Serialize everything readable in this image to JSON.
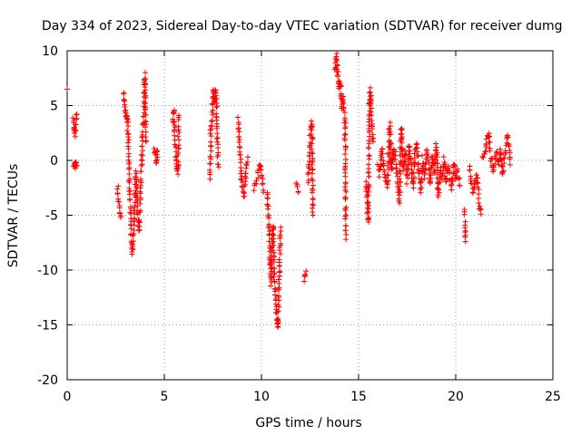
{
  "chart_data": {
    "type": "scatter",
    "title": "Day 334 of 2023, Sidereal Day-to-day VTEC variation (SDTVAR) for receiver dumg",
    "xlabel": "GPS time / hours",
    "ylabel": "SDTVAR / TECUs",
    "xlim": [
      0,
      25
    ],
    "ylim": [
      -20,
      10
    ],
    "xticks": [
      0,
      5,
      10,
      15,
      20,
      25
    ],
    "yticks": [
      10,
      5,
      0,
      -5,
      -10,
      -15,
      -20
    ],
    "grid": true,
    "marker": "+",
    "color": "#ff0000",
    "segments": [
      [
        [
          0.0,
          6.5
        ]
      ],
      [
        [
          0.3,
          3.8
        ],
        [
          0.35,
          2.9
        ],
        [
          0.4,
          2.3
        ],
        [
          0.45,
          3.4
        ],
        [
          0.5,
          4.2
        ]
      ],
      [
        [
          0.35,
          -0.4
        ],
        [
          0.4,
          -0.7
        ],
        [
          0.45,
          -0.2
        ],
        [
          0.5,
          -0.5
        ]
      ],
      [
        [
          2.6,
          -2.3
        ],
        [
          2.65,
          -3.7
        ],
        [
          2.7,
          -4.6
        ],
        [
          2.75,
          -5.2
        ]
      ],
      [
        [
          2.9,
          6.2
        ],
        [
          2.95,
          5.0
        ],
        [
          3.0,
          4.3
        ],
        [
          3.05,
          4.1
        ],
        [
          3.1,
          3.6
        ],
        [
          3.15,
          1.8
        ],
        [
          3.2,
          -1.5
        ],
        [
          3.25,
          -4.6
        ],
        [
          3.3,
          -6.9
        ],
        [
          3.35,
          -8.6
        ],
        [
          3.4,
          -6.8
        ],
        [
          3.45,
          -4.9
        ],
        [
          3.5,
          -2.6
        ],
        [
          3.55,
          -1.1
        ],
        [
          3.6,
          -3.4
        ],
        [
          3.65,
          -5.6
        ],
        [
          3.7,
          -6.6
        ],
        [
          3.75,
          -4.1
        ],
        [
          3.8,
          -1.8
        ],
        [
          3.85,
          0.4
        ],
        [
          3.9,
          2.8
        ],
        [
          3.95,
          4.5
        ],
        [
          4.0,
          7.8
        ],
        [
          4.05,
          1.7
        ]
      ],
      [
        [
          4.5,
          1.2
        ],
        [
          4.55,
          0.5
        ],
        [
          4.6,
          -0.3
        ],
        [
          4.65,
          0.9
        ]
      ],
      [
        [
          5.45,
          3.5
        ],
        [
          5.5,
          4.6
        ],
        [
          5.55,
          2.2
        ],
        [
          5.6,
          0.3
        ],
        [
          5.65,
          -0.6
        ],
        [
          5.7,
          -1.1
        ],
        [
          5.75,
          4.1
        ]
      ],
      [
        [
          7.35,
          -1.6
        ],
        [
          7.4,
          2.8
        ],
        [
          7.45,
          3.5
        ],
        [
          7.5,
          6.0
        ],
        [
          7.55,
          6.4
        ],
        [
          7.6,
          5.2
        ],
        [
          7.65,
          6.5
        ],
        [
          7.7,
          4.4
        ],
        [
          7.75,
          0.4
        ],
        [
          7.8,
          -0.6
        ]
      ],
      [
        [
          8.8,
          3.9
        ],
        [
          8.85,
          2.4
        ],
        [
          8.9,
          0.6
        ],
        [
          8.95,
          -1.0
        ],
        [
          9.0,
          -2.3
        ],
        [
          9.1,
          -3.3
        ],
        [
          9.2,
          -1.2
        ],
        [
          9.3,
          0.3
        ]
      ],
      [
        [
          9.6,
          -2.7
        ],
        [
          9.8,
          -1.4
        ],
        [
          9.9,
          -0.4
        ],
        [
          10.0,
          -0.9
        ],
        [
          10.1,
          -2.9
        ]
      ],
      [
        [
          10.3,
          -2.8
        ],
        [
          10.35,
          -4.9
        ],
        [
          10.4,
          -6.5
        ],
        [
          10.45,
          -9.4
        ],
        [
          10.5,
          -11.2
        ],
        [
          10.55,
          -7.1
        ],
        [
          10.6,
          -5.8
        ],
        [
          10.65,
          -10.2
        ],
        [
          10.7,
          -11.7
        ],
        [
          10.75,
          -13.4
        ],
        [
          10.8,
          -14.6
        ],
        [
          10.85,
          -15.3
        ],
        [
          10.9,
          -11.2
        ],
        [
          10.95,
          -8.3
        ],
        [
          11.0,
          -6.1
        ]
      ],
      [
        [
          11.8,
          -2.3
        ],
        [
          11.9,
          -2.9
        ]
      ],
      [
        [
          12.2,
          -11.0
        ],
        [
          12.3,
          -10.1
        ]
      ],
      [
        [
          12.4,
          -2.0
        ],
        [
          12.45,
          -0.6
        ],
        [
          12.5,
          1.8
        ],
        [
          12.55,
          2.9
        ],
        [
          12.6,
          3.5
        ],
        [
          12.65,
          -5.0
        ]
      ],
      [
        [
          13.8,
          8.1
        ],
        [
          13.85,
          9.6
        ],
        [
          13.9,
          8.3
        ],
        [
          13.95,
          7.5
        ],
        [
          14.0,
          6.6
        ],
        [
          14.05,
          7.3
        ],
        [
          14.1,
          5.8
        ],
        [
          14.15,
          4.9
        ],
        [
          14.2,
          6.1
        ],
        [
          14.25,
          4.4
        ],
        [
          14.3,
          3.6
        ],
        [
          14.35,
          -7.2
        ]
      ],
      [
        [
          15.4,
          -2.1
        ],
        [
          15.45,
          -4.4
        ],
        [
          15.5,
          -5.7
        ],
        [
          15.55,
          4.6
        ],
        [
          15.6,
          6.5
        ],
        [
          15.65,
          5.2
        ],
        [
          15.7,
          2.9
        ],
        [
          15.75,
          1.7
        ]
      ],
      [
        [
          16.0,
          -0.2
        ],
        [
          16.1,
          -1.3
        ],
        [
          16.2,
          1.2
        ],
        [
          16.3,
          -0.6
        ],
        [
          16.4,
          -1.8
        ],
        [
          16.5,
          -2.3
        ],
        [
          16.6,
          3.3
        ],
        [
          16.7,
          -1.0
        ],
        [
          16.8,
          1.1
        ],
        [
          16.9,
          0.4
        ],
        [
          17.0,
          -2.1
        ],
        [
          17.1,
          -3.9
        ],
        [
          17.2,
          3.0
        ],
        [
          17.3,
          -0.7
        ],
        [
          17.4,
          0.9
        ],
        [
          17.5,
          -1.9
        ],
        [
          17.6,
          1.4
        ],
        [
          17.7,
          -0.3
        ],
        [
          17.8,
          -2.4
        ],
        [
          17.9,
          0.6
        ],
        [
          18.0,
          1.6
        ],
        [
          18.1,
          -0.9
        ],
        [
          18.2,
          -2.8
        ],
        [
          18.3,
          0.2
        ],
        [
          18.4,
          -1.5
        ],
        [
          18.5,
          1.0
        ],
        [
          18.6,
          -0.4
        ],
        [
          18.7,
          -2.2
        ],
        [
          18.8,
          0.5
        ],
        [
          18.9,
          -1.1
        ],
        [
          19.0,
          1.3
        ],
        [
          19.1,
          -3.2
        ],
        [
          19.2,
          -0.8
        ],
        [
          19.3,
          -1.6
        ],
        [
          19.4,
          0.1
        ],
        [
          19.5,
          -2.0
        ],
        [
          19.6,
          -0.5
        ],
        [
          19.7,
          -1.3
        ],
        [
          19.8,
          -2.6
        ],
        [
          19.9,
          -0.2
        ],
        [
          20.0,
          -1.8
        ],
        [
          20.1,
          -0.9
        ],
        [
          20.2,
          -2.3
        ]
      ],
      [
        [
          20.45,
          -4.6
        ],
        [
          20.5,
          -7.4
        ]
      ],
      [
        [
          20.7,
          -0.6
        ],
        [
          20.8,
          -1.8
        ],
        [
          20.9,
          -3.0
        ],
        [
          21.0,
          -2.1
        ],
        [
          21.1,
          -1.2
        ],
        [
          21.2,
          -4.0
        ],
        [
          21.3,
          -4.9
        ]
      ],
      [
        [
          21.4,
          0.2
        ],
        [
          21.5,
          0.6
        ],
        [
          21.6,
          1.9
        ],
        [
          21.7,
          2.5
        ],
        [
          21.8,
          0.4
        ],
        [
          21.9,
          -0.9
        ],
        [
          22.0,
          -0.3
        ],
        [
          22.1,
          0.8
        ],
        [
          22.2,
          -0.5
        ],
        [
          22.3,
          1.1
        ],
        [
          22.4,
          -1.4
        ],
        [
          22.5,
          0.3
        ],
        [
          22.6,
          1.6
        ],
        [
          22.7,
          2.2
        ],
        [
          22.8,
          -0.4
        ]
      ]
    ]
  }
}
